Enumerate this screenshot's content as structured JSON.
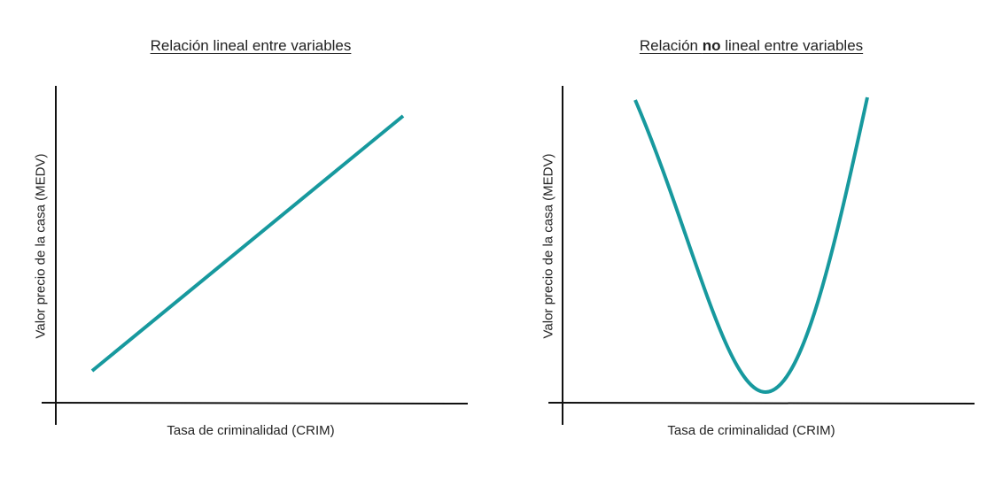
{
  "colors": {
    "curve": "#17999e",
    "axis": "#111111"
  },
  "panels": [
    {
      "title_text": "Relación lineal entre variables",
      "ylabel": "Valor precio de la casa (MEDV)",
      "xlabel": "Tasa de criminalidad (CRIM)",
      "curve_shape": "increasing straight line"
    },
    {
      "title_parts": [
        "Relación ",
        "no",
        " lineal entre variables"
      ],
      "ylabel": "Valor precio de la casa (MEDV)",
      "xlabel": "Tasa de criminalidad (CRIM)",
      "curve_shape": "U-shaped parabola"
    }
  ]
}
